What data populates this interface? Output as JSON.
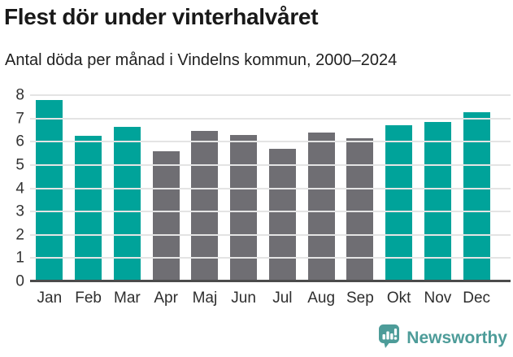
{
  "title": "Flest dör under vinterhalvåret",
  "subtitle": "Antal döda per månad i Vindelns kommun, 2000–2024",
  "chart_data": {
    "type": "bar",
    "title": "Flest dör under vinterhalvåret",
    "subtitle": "Antal döda per månad i Vindelns kommun, 2000–2024",
    "categories": [
      "Jan",
      "Feb",
      "Mar",
      "Apr",
      "Maj",
      "Jun",
      "Jul",
      "Aug",
      "Sep",
      "Okt",
      "Nov",
      "Dec"
    ],
    "values": [
      7.8,
      6.25,
      6.65,
      5.6,
      6.45,
      6.3,
      5.7,
      6.4,
      6.15,
      6.7,
      6.85,
      7.25
    ],
    "bar_colors": [
      "#00a39a",
      "#00a39a",
      "#00a39a",
      "#6f6e73",
      "#6f6e73",
      "#6f6e73",
      "#6f6e73",
      "#6f6e73",
      "#6f6e73",
      "#00a39a",
      "#00a39a",
      "#00a39a"
    ],
    "xlabel": "",
    "ylabel": "",
    "ylim": [
      0,
      8
    ],
    "yticks": [
      0,
      1,
      2,
      3,
      4,
      5,
      6,
      7,
      8
    ],
    "grid": true,
    "legend_position": "none"
  },
  "colors": {
    "highlight": "#00a39a",
    "muted": "#6f6e73",
    "gridline": "#e4e4e4",
    "axis": "#4b4b4b",
    "brand": "#4d9c99"
  },
  "footer": {
    "brand_name": "Newsworthy",
    "logo_icon": "bar-chart-speech-bubble-icon"
  }
}
